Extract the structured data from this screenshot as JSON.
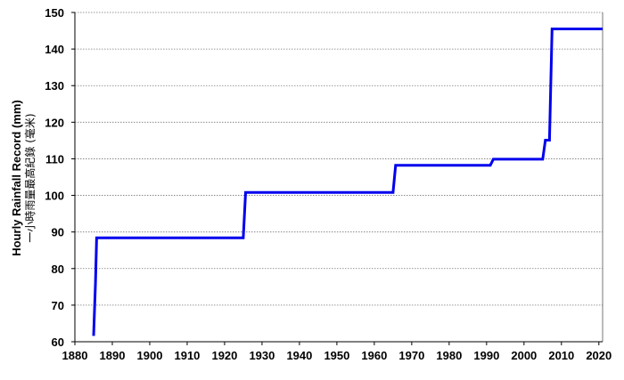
{
  "chart_data": {
    "type": "line",
    "title": "",
    "xlabel": "",
    "ylabel": "Hourly Rainfall Record (mm)",
    "ylabel_secondary": "一小時雨量最高紀錄 (毫米)",
    "xlim": [
      1880,
      2021
    ],
    "ylim": [
      60,
      150
    ],
    "x_ticks": [
      1880,
      1890,
      1900,
      1910,
      1920,
      1930,
      1940,
      1950,
      1960,
      1970,
      1980,
      1990,
      2000,
      2010,
      2020
    ],
    "y_ticks": [
      60,
      70,
      80,
      90,
      100,
      110,
      120,
      130,
      140,
      150
    ],
    "grid": "horizontal dotted",
    "line_color": "#0000ee",
    "series": [
      {
        "name": "",
        "points": [
          [
            1885.0,
            61.6
          ],
          [
            1885.5,
            76.0
          ],
          [
            1885.8,
            88.4
          ],
          [
            1925.0,
            88.4
          ],
          [
            1925.6,
            100.8
          ],
          [
            1965.0,
            100.8
          ],
          [
            1965.7,
            108.2
          ],
          [
            1991.0,
            108.2
          ],
          [
            1991.8,
            109.9
          ],
          [
            2005.0,
            109.9
          ],
          [
            2005.7,
            115.1
          ],
          [
            2006.8,
            115.1
          ],
          [
            2007.5,
            145.5
          ],
          [
            2021.0,
            145.5
          ]
        ]
      }
    ]
  }
}
